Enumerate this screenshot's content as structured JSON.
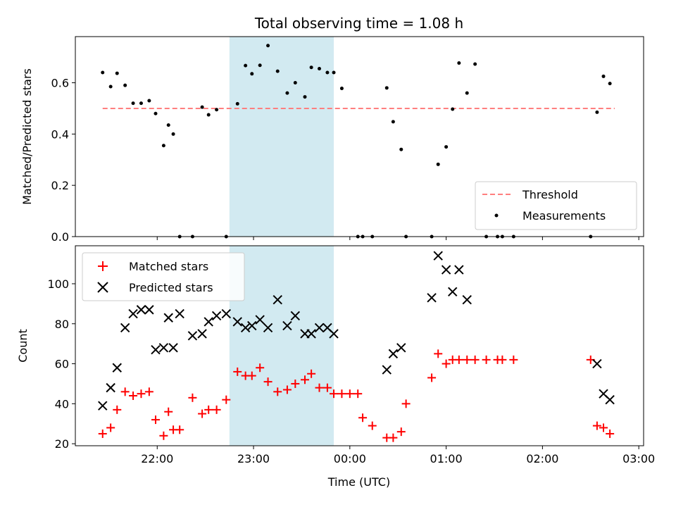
{
  "chart_data": [
    {
      "type": "scatter",
      "title": "Total observing time = 1.08 h",
      "ylabel": "Matched/Predicted stars",
      "xlabel": "",
      "ylim": [
        0.0,
        0.78
      ],
      "yticks": [
        0.0,
        0.2,
        0.4,
        0.6
      ],
      "ytick_labels": [
        "0.0",
        "0.2",
        "0.4",
        "0.6"
      ],
      "legend_position": "lower-right",
      "series": [
        {
          "name": "Threshold",
          "kind": "dashed-line",
          "color": "#ff7f7f",
          "x": [
            "21:26",
            "02:45"
          ],
          "y": [
            0.5,
            0.5
          ]
        },
        {
          "name": "Measurements",
          "kind": "points",
          "color": "#000000",
          "x": [
            "21:26",
            "21:31",
            "21:35",
            "21:40",
            "21:45",
            "21:50",
            "21:55",
            "21:59",
            "22:04",
            "22:07",
            "22:10",
            "22:14",
            "22:22",
            "22:28",
            "22:32",
            "22:37",
            "22:43",
            "22:50",
            "22:55",
            "22:59",
            "23:04",
            "23:09",
            "23:15",
            "23:21",
            "23:26",
            "23:32",
            "23:36",
            "23:41",
            "23:46",
            "23:50",
            "23:55",
            "00:05",
            "00:08",
            "00:14",
            "00:23",
            "00:27",
            "00:32",
            "00:35",
            "00:51",
            "00:55",
            "01:00",
            "01:04",
            "01:08",
            "01:13",
            "01:18",
            "01:25",
            "01:32",
            "01:35",
            "01:42",
            "02:30",
            "02:34",
            "02:38",
            "02:42"
          ],
          "y": [
            0.64,
            0.585,
            0.637,
            0.59,
            0.52,
            0.52,
            0.53,
            0.48,
            0.355,
            0.435,
            0.4,
            0.0,
            0.0,
            0.505,
            0.475,
            0.495,
            0.0,
            0.518,
            0.667,
            0.635,
            0.668,
            0.745,
            0.645,
            0.56,
            0.6,
            0.545,
            0.66,
            0.655,
            0.64,
            0.64,
            0.578,
            0.0,
            0.0,
            0.0,
            0.58,
            0.448,
            0.34,
            0.0,
            0.0,
            0.282,
            0.35,
            0.497,
            0.677,
            0.56,
            0.673,
            0.0,
            0.0,
            0.0,
            0.0,
            0.0,
            0.485,
            0.625,
            0.597
          ]
        }
      ],
      "shaded_region": {
        "x": [
          "22:45",
          "23:50"
        ],
        "color": "#add8e6"
      }
    },
    {
      "type": "scatter",
      "title": "",
      "xlabel": "Time (UTC)",
      "ylabel": "Count",
      "ylim": [
        19,
        119
      ],
      "yticks": [
        20,
        40,
        60,
        80,
        100
      ],
      "ytick_labels": [
        "20",
        "40",
        "60",
        "80",
        "100"
      ],
      "xlim": [
        "21:09",
        "03:03"
      ],
      "xticks": [
        "22:00",
        "23:00",
        "00:00",
        "01:00",
        "02:00",
        "03:00"
      ],
      "xtick_labels": [
        "22:00",
        "23:00",
        "00:00",
        "01:00",
        "02:00",
        "03:00"
      ],
      "legend_position": "upper-left",
      "series": [
        {
          "name": "Matched stars",
          "marker": "plus",
          "color": "#ff0000",
          "x": [
            "21:26",
            "21:31",
            "21:35",
            "21:40",
            "21:45",
            "21:50",
            "21:55",
            "21:59",
            "22:04",
            "22:07",
            "22:10",
            "22:14",
            "22:22",
            "22:28",
            "22:32",
            "22:37",
            "22:43",
            "22:50",
            "22:55",
            "22:59",
            "23:04",
            "23:09",
            "23:15",
            "23:21",
            "23:26",
            "23:32",
            "23:36",
            "23:41",
            "23:46",
            "23:50",
            "23:55",
            "00:00",
            "00:05",
            "00:08",
            "00:14",
            "00:23",
            "00:27",
            "00:32",
            "00:35",
            "00:51",
            "00:55",
            "01:00",
            "01:04",
            "01:08",
            "01:13",
            "01:18",
            "01:25",
            "01:32",
            "01:35",
            "01:42",
            "02:30",
            "02:34",
            "02:38",
            "02:42"
          ],
          "y": [
            25,
            28,
            37,
            46,
            44,
            45,
            46,
            32,
            24,
            36,
            27,
            27,
            43,
            35,
            37,
            37,
            42,
            56,
            54,
            54,
            58,
            51,
            46,
            47,
            50,
            52,
            55,
            48,
            48,
            45,
            45,
            45,
            45,
            33,
            29,
            23,
            23,
            26,
            40,
            53,
            65,
            60,
            62,
            62,
            62,
            62,
            62,
            62,
            62,
            62,
            62,
            29,
            28,
            25
          ]
        },
        {
          "name": "Predicted stars",
          "marker": "x",
          "color": "#000000",
          "x": [
            "21:26",
            "21:31",
            "21:35",
            "21:40",
            "21:45",
            "21:50",
            "21:55",
            "21:59",
            "22:04",
            "22:07",
            "22:10",
            "22:14",
            "22:22",
            "22:28",
            "22:32",
            "22:37",
            "22:43",
            "22:50",
            "22:55",
            "22:59",
            "23:04",
            "23:09",
            "23:15",
            "23:21",
            "23:26",
            "23:32",
            "23:36",
            "23:41",
            "23:46",
            "23:50",
            "00:23",
            "00:27",
            "00:32",
            "00:51",
            "00:55",
            "01:00",
            "01:04",
            "01:08",
            "01:13",
            "02:34",
            "02:38",
            "02:42"
          ],
          "y": [
            39,
            48,
            58,
            78,
            85,
            87,
            87,
            67,
            68,
            83,
            68,
            85,
            74,
            75,
            81,
            84,
            85,
            81,
            78,
            79,
            82,
            78,
            92,
            79,
            84,
            75,
            75,
            78,
            78,
            75,
            57,
            65,
            68,
            93,
            114,
            107,
            96,
            107,
            92,
            60,
            45,
            42
          ]
        }
      ],
      "shaded_region": {
        "x": [
          "22:45",
          "23:50"
        ],
        "color": "#add8e6"
      }
    }
  ]
}
